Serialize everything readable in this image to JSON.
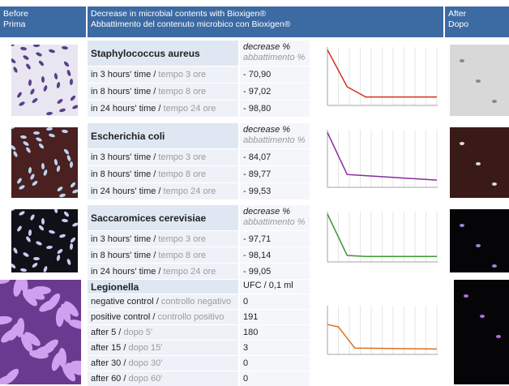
{
  "header": {
    "before": [
      "Before",
      "Prima"
    ],
    "title": [
      "Decrease in microbial contents with Bioxigen®",
      "Abbattimento del contenuto microbico con Bioxigen®"
    ],
    "after": [
      "After",
      "Dopo"
    ]
  },
  "sections": [
    {
      "name": "Staphylococcus aureus",
      "unit": [
        "decrease %",
        "abbattimento %"
      ],
      "rows": [
        {
          "en": "in 3 hours' time /",
          "it": "tempo 3 ore",
          "value": "- 70,90"
        },
        {
          "en": "in 8 hours' time /",
          "it": "tempo 8 ore",
          "value": "- 97,02"
        },
        {
          "en": "in 24 hours' time /",
          "it": "tempo 24 ore",
          "value": "- 98,80"
        }
      ]
    },
    {
      "name": "Escherichia coli",
      "unit": [
        "decrease %",
        "abbattimento %"
      ],
      "rows": [
        {
          "en": "in 3 hours' time /",
          "it": "tempo 3 ore",
          "value": "- 84,07"
        },
        {
          "en": "in 8 hours' time /",
          "it": "tempo 8 ore",
          "value": "- 89,77"
        },
        {
          "en": "in 24 hours' time /",
          "it": "tempo 24 ore",
          "value": "- 99,53"
        }
      ]
    },
    {
      "name": "Saccaromices cerevisiae",
      "unit": [
        "decrease %",
        "abbattimento %"
      ],
      "rows": [
        {
          "en": "in 3 hours' time /",
          "it": "tempo 3 ore",
          "value": "- 97,71"
        },
        {
          "en": "in 8 hours' time /",
          "it": "tempo 8 ore",
          "value": "- 98,14"
        },
        {
          "en": "in 24 hours' time /",
          "it": "tempo 24 ore",
          "value": "- 99,05"
        }
      ]
    },
    {
      "name": "Legionella",
      "unit": [
        "UFC / 0,1 ml"
      ],
      "rows": [
        {
          "en": "negative control /",
          "it": "controllo negativo",
          "value": "0"
        },
        {
          "en": "positive control /",
          "it": "controllo positivo",
          "value": "191"
        },
        {
          "en": "after 5 /",
          "it": "dopo 5'",
          "value": "180"
        },
        {
          "en": "after 15 /",
          "it": "dopo 15'",
          "value": "3"
        },
        {
          "en": "after 30 /",
          "it": "dopo 30'",
          "value": "0"
        },
        {
          "en": "after 60 /",
          "it": "dopo 60'",
          "value": "0"
        }
      ]
    }
  ]
}
